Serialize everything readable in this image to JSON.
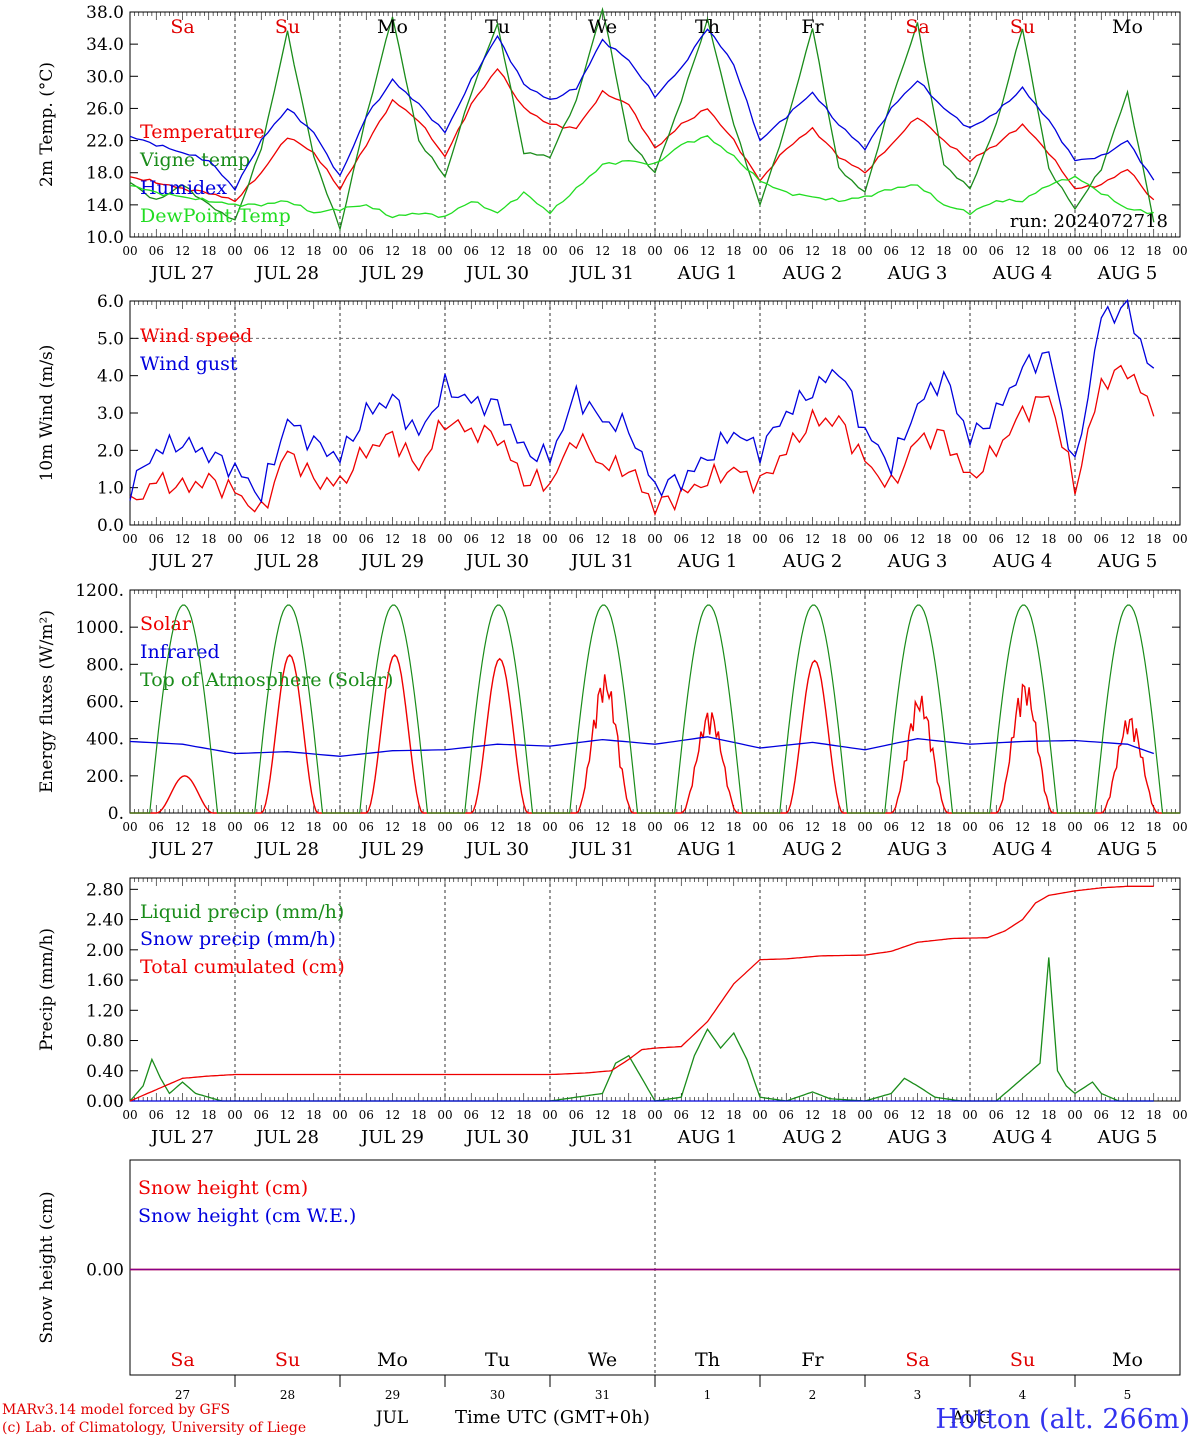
{
  "header": {
    "run_label": "run: 2024072718"
  },
  "footer": {
    "model_line": "MARv3.14 model forced by GFS",
    "credit_line": "(c) Lab. of Climatology, University of Liege",
    "station": "Hotton (alt. 266m)",
    "xlabel": "Time UTC (GMT+0h)",
    "month_jul": "JUL",
    "month_aug": "AUG"
  },
  "time_axis": {
    "days": [
      "JUL 27",
      "JUL 28",
      "JUL 29",
      "JUL 30",
      "JUL 31",
      "AUG  1",
      "AUG  2",
      "AUG  3",
      "AUG  4",
      "AUG  5"
    ],
    "weekdays": [
      "Sa",
      "Su",
      "Mo",
      "Tu",
      "We",
      "Th",
      "Fr",
      "Sa",
      "Su",
      "Mo"
    ],
    "weekday_colors": [
      "#e00000",
      "#e00000",
      "#000000",
      "#000000",
      "#000000",
      "#000000",
      "#000000",
      "#e00000",
      "#e00000",
      "#000000"
    ],
    "day_numbers": [
      "27",
      "28",
      "29",
      "30",
      "31",
      "1",
      "2",
      "3",
      "4",
      "5"
    ],
    "hour_ticks": [
      "00",
      "06",
      "12",
      "18"
    ],
    "hour_end": "00"
  },
  "colors": {
    "red": "#ee0000",
    "green": "#1a8c1a",
    "blue": "#0000dd",
    "lightgreen": "#22dd22",
    "purple": "#880088"
  },
  "chart_data": [
    {
      "type": "line",
      "ylabel": "2m Temp. (°C)",
      "ylim": [
        10,
        38
      ],
      "yticks": [
        "10.0",
        "14.0",
        "18.0",
        "22.0",
        "26.0",
        "30.0",
        "34.0",
        "38.0"
      ],
      "x_unit": "hours since JUL 27 00 UTC",
      "series": [
        {
          "name": "Temperature",
          "color": "#ee0000",
          "x": [
            0,
            6,
            12,
            18,
            24,
            30,
            36,
            42,
            48,
            54,
            60,
            66,
            72,
            78,
            84,
            90,
            96,
            102,
            108,
            114,
            120,
            126,
            132,
            138,
            144,
            150,
            156,
            162,
            168,
            174,
            180,
            186,
            192,
            198,
            204,
            210,
            216,
            222,
            228,
            234
          ],
          "values": [
            17.5,
            16.8,
            16.0,
            15.5,
            14.5,
            18.0,
            22.5,
            20.5,
            16.0,
            21.5,
            27.0,
            24.5,
            20.0,
            26.5,
            31.0,
            26.0,
            24.0,
            23.5,
            28.0,
            26.5,
            21.0,
            24.0,
            26.0,
            22.0,
            17.0,
            21.0,
            23.5,
            20.0,
            18.0,
            21.5,
            25.0,
            22.0,
            19.5,
            21.5,
            24.0,
            20.5,
            16.0,
            16.5,
            18.5,
            14.5
          ]
        },
        {
          "name": "Vigne temp",
          "color": "#1a8c1a",
          "x": [
            0,
            6,
            12,
            18,
            24,
            30,
            36,
            42,
            48,
            54,
            60,
            66,
            72,
            78,
            84,
            90,
            96,
            102,
            108,
            114,
            120,
            126,
            132,
            138,
            144,
            150,
            156,
            162,
            168,
            174,
            180,
            186,
            192,
            198,
            204,
            210,
            216,
            222,
            228,
            234
          ],
          "values": [
            16.8,
            14.5,
            16.5,
            14.0,
            12.0,
            21.0,
            35.5,
            20.0,
            11.0,
            25.0,
            37.5,
            22.0,
            17.5,
            28.0,
            36.5,
            20.5,
            20.0,
            27.0,
            38.5,
            22.0,
            18.0,
            27.0,
            37.0,
            24.0,
            14.0,
            24.0,
            36.0,
            18.5,
            15.5,
            27.0,
            36.5,
            19.0,
            16.0,
            24.0,
            36.0,
            18.5,
            13.5,
            18.5,
            28.0,
            12.0
          ]
        },
        {
          "name": "Humidex",
          "color": "#0000dd",
          "x": [
            0,
            6,
            12,
            18,
            24,
            30,
            36,
            42,
            48,
            54,
            60,
            66,
            72,
            78,
            84,
            90,
            96,
            102,
            108,
            114,
            120,
            126,
            132,
            138,
            144,
            150,
            156,
            162,
            168,
            174,
            180,
            186,
            192,
            198,
            204,
            210,
            216,
            222,
            228,
            234
          ],
          "values": [
            22.5,
            21.5,
            20.5,
            19.5,
            16.0,
            22.0,
            26.0,
            23.0,
            17.5,
            25.0,
            29.5,
            26.5,
            23.0,
            29.5,
            35.0,
            29.0,
            27.0,
            28.5,
            34.5,
            32.0,
            27.5,
            31.0,
            36.0,
            31.5,
            22.0,
            25.0,
            28.0,
            24.0,
            21.0,
            26.0,
            29.5,
            26.0,
            23.5,
            25.5,
            28.5,
            24.5,
            19.5,
            20.0,
            22.0,
            17.0
          ]
        },
        {
          "name": "DewPoint Temp",
          "color": "#22dd22",
          "x": [
            0,
            6,
            12,
            18,
            24,
            30,
            36,
            42,
            48,
            54,
            60,
            66,
            72,
            78,
            84,
            90,
            96,
            102,
            108,
            114,
            120,
            126,
            132,
            138,
            144,
            150,
            156,
            162,
            168,
            174,
            180,
            186,
            192,
            198,
            204,
            210,
            216,
            222,
            228,
            234
          ],
          "values": [
            16.5,
            15.5,
            15.0,
            14.5,
            14.0,
            14.0,
            14.5,
            13.0,
            13.5,
            14.0,
            12.5,
            13.0,
            12.5,
            14.5,
            13.0,
            15.5,
            13.0,
            16.0,
            19.0,
            19.5,
            19.0,
            21.5,
            22.5,
            20.0,
            17.0,
            15.5,
            15.0,
            14.5,
            15.0,
            16.0,
            16.5,
            14.0,
            13.0,
            14.5,
            14.5,
            16.5,
            17.5,
            15.5,
            13.5,
            13.0
          ]
        }
      ]
    },
    {
      "type": "line",
      "ylabel": "10m Wind (m/s)",
      "ylim": [
        0,
        6
      ],
      "yticks": [
        "0.0",
        "1.0",
        "2.0",
        "3.0",
        "4.0",
        "5.0",
        "6.0"
      ],
      "dashed_ref": 5.0,
      "series": [
        {
          "name": "Wind speed",
          "color": "#ee0000",
          "x": [
            0,
            6,
            12,
            18,
            24,
            30,
            36,
            42,
            48,
            54,
            60,
            66,
            72,
            78,
            84,
            90,
            96,
            102,
            108,
            114,
            120,
            126,
            132,
            138,
            144,
            150,
            156,
            162,
            168,
            174,
            180,
            186,
            192,
            198,
            204,
            210,
            216,
            222,
            228,
            234
          ],
          "values": [
            0.5,
            1.2,
            1.0,
            1.2,
            0.9,
            0.3,
            2.0,
            1.2,
            1.1,
            2.0,
            2.4,
            1.5,
            2.8,
            2.5,
            2.4,
            1.2,
            1.1,
            2.4,
            1.6,
            1.5,
            0.5,
            0.8,
            1.2,
            1.5,
            1.1,
            2.0,
            2.8,
            2.8,
            1.7,
            1.0,
            2.3,
            2.4,
            1.2,
            2.0,
            3.0,
            3.5,
            1.0,
            3.8,
            4.2,
            3.0
          ]
        },
        {
          "name": "Wind gust",
          "color": "#0000dd",
          "x": [
            0,
            6,
            12,
            18,
            24,
            30,
            36,
            42,
            48,
            54,
            60,
            66,
            72,
            78,
            84,
            90,
            96,
            102,
            108,
            114,
            120,
            126,
            132,
            138,
            144,
            150,
            156,
            162,
            168,
            174,
            180,
            186,
            192,
            198,
            204,
            210,
            216,
            222,
            228,
            234
          ],
          "values": [
            1.0,
            2.0,
            2.2,
            1.9,
            1.5,
            0.8,
            2.8,
            2.2,
            1.8,
            3.0,
            3.4,
            2.4,
            3.7,
            3.3,
            3.2,
            2.0,
            1.8,
            3.5,
            2.8,
            2.6,
            1.0,
            1.2,
            1.8,
            2.5,
            2.0,
            3.0,
            3.6,
            4.2,
            2.5,
            1.6,
            3.2,
            4.0,
            2.3,
            3.0,
            4.2,
            4.6,
            1.5,
            5.6,
            5.8,
            4.0
          ]
        }
      ]
    },
    {
      "type": "line",
      "ylabel": "Energy fluxes (W/m²)",
      "ylim": [
        0,
        1200
      ],
      "yticks": [
        "0.",
        "200.",
        "400.",
        "600.",
        "800.",
        "1000.",
        "1200."
      ],
      "series": [
        {
          "name": "Solar",
          "color": "#ee0000",
          "peaks": [
            200,
            850,
            850,
            830,
            750,
            560,
            820,
            640,
            720,
            530
          ]
        },
        {
          "name": "Infrared",
          "color": "#0000dd",
          "x": [
            0,
            12,
            24,
            36,
            48,
            60,
            72,
            84,
            96,
            108,
            120,
            132,
            144,
            156,
            168,
            180,
            192,
            204,
            216,
            228,
            234
          ],
          "values": [
            385,
            370,
            320,
            330,
            305,
            335,
            340,
            370,
            360,
            395,
            370,
            410,
            350,
            380,
            340,
            400,
            370,
            385,
            390,
            370,
            320
          ]
        },
        {
          "name": "Top of Atmosphere (Solar)",
          "color": "#1a8c1a",
          "peak": 1120
        }
      ]
    },
    {
      "type": "line",
      "ylabel": "Precip (mm/h)",
      "ylim": [
        0,
        2.95
      ],
      "yticks": [
        "0.00",
        "0.40",
        "0.80",
        "1.20",
        "1.60",
        "2.00",
        "2.40",
        "2.80"
      ],
      "series": [
        {
          "name": "Liquid precip (mm/h)",
          "color": "#1a8c1a",
          "x": [
            0,
            3,
            5,
            7,
            9,
            12,
            15,
            18,
            21,
            24,
            96,
            102,
            108,
            111,
            114,
            117,
            120,
            126,
            129,
            132,
            135,
            138,
            141,
            144,
            150,
            156,
            160,
            168,
            174,
            177,
            180,
            184,
            190,
            198,
            204,
            208,
            210,
            212,
            214,
            216,
            220,
            222,
            226,
            230,
            234
          ],
          "values": [
            0,
            0.2,
            0.55,
            0.3,
            0.1,
            0.25,
            0.1,
            0.05,
            0,
            0,
            0,
            0.05,
            0.1,
            0.5,
            0.6,
            0.3,
            0,
            0.05,
            0.6,
            0.95,
            0.7,
            0.9,
            0.55,
            0.05,
            0,
            0.12,
            0.03,
            0,
            0.1,
            0.3,
            0.2,
            0.05,
            0,
            0,
            0.3,
            0.5,
            1.9,
            0.4,
            0.2,
            0.1,
            0.25,
            0.1,
            0,
            0,
            0
          ]
        },
        {
          "name": "Snow precip (mm/h)",
          "color": "#0000dd",
          "x": [
            0,
            234
          ],
          "values": [
            0,
            0
          ]
        },
        {
          "name": "Total cumulated (cm)",
          "color": "#ee0000",
          "x": [
            0,
            6,
            12,
            18,
            24,
            96,
            104,
            110,
            114,
            117,
            120,
            126,
            132,
            138,
            144,
            150,
            158,
            168,
            174,
            180,
            188,
            196,
            200,
            204,
            207,
            210,
            216,
            222,
            228,
            234
          ],
          "values": [
            0,
            0.15,
            0.3,
            0.33,
            0.35,
            0.35,
            0.37,
            0.4,
            0.55,
            0.68,
            0.7,
            0.72,
            1.05,
            1.55,
            1.87,
            1.88,
            1.92,
            1.93,
            1.98,
            2.1,
            2.15,
            2.16,
            2.25,
            2.4,
            2.62,
            2.72,
            2.78,
            2.82,
            2.84,
            2.84
          ]
        }
      ]
    },
    {
      "type": "line",
      "ylabel": "Snow height (cm)",
      "yticks": [
        "0.00"
      ],
      "series": [
        {
          "name": "Snow height (cm)",
          "color": "#ee0000",
          "values": [
            0,
            0
          ]
        },
        {
          "name": "Snow height (cm W.E.)",
          "color": "#0000dd",
          "values": [
            0,
            0
          ]
        }
      ]
    }
  ]
}
